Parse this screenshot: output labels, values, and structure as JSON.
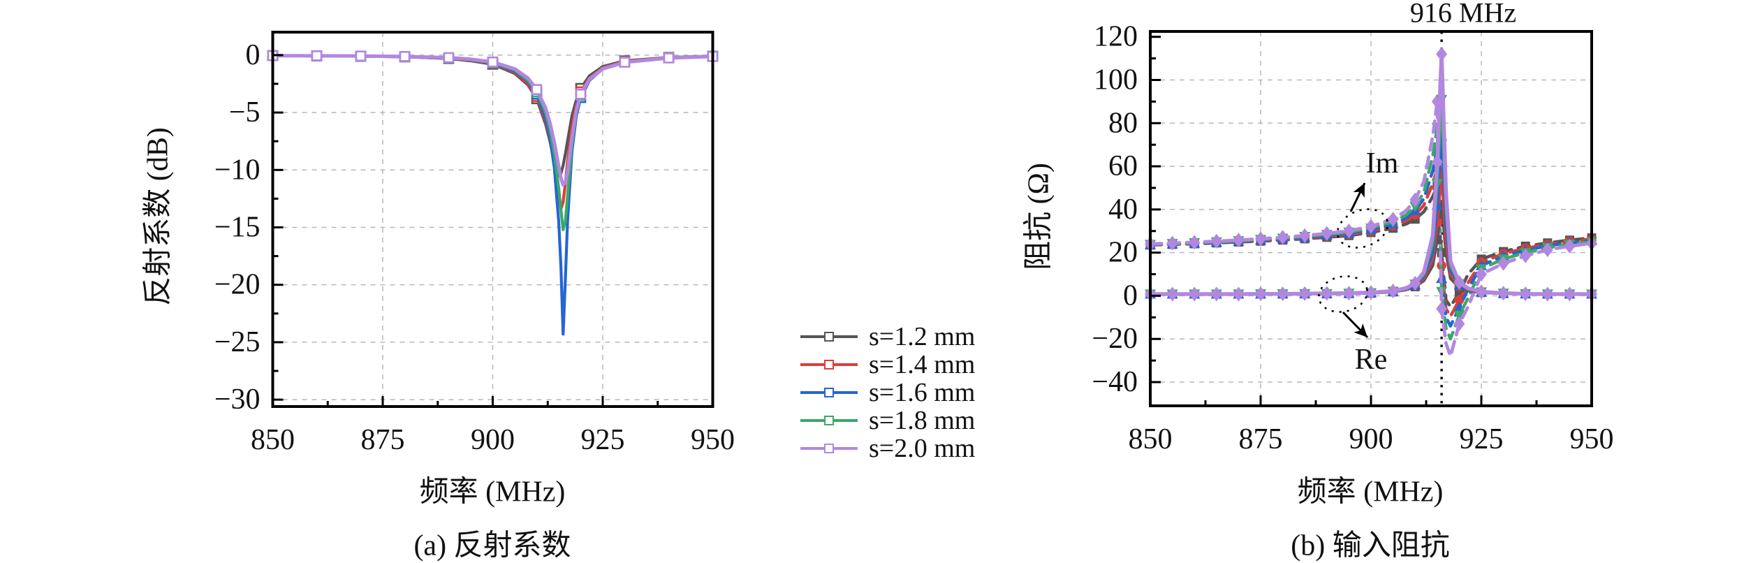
{
  "figure": {
    "background": "#ffffff",
    "legend": {
      "items": [
        {
          "label": "s=1.2 mm",
          "color": "#555555"
        },
        {
          "label": "s=1.4 mm",
          "color": "#e03c35"
        },
        {
          "label": "s=1.6 mm",
          "color": "#2565d4"
        },
        {
          "label": "s=1.8 mm",
          "color": "#3aa968"
        },
        {
          "label": "s=2.0 mm",
          "color": "#b387e0"
        }
      ]
    },
    "grid_color": "#b8b8b8",
    "axis_color": "#000000"
  },
  "chart_data": [
    {
      "id": "reflection",
      "type": "line",
      "title": "",
      "caption": "(a) 反射系数",
      "xlabel": "频率 (MHz)",
      "ylabel": "反射系数 (dB)",
      "xlim": [
        850,
        950
      ],
      "ylim": [
        -30.6,
        2.0
      ],
      "xticks": [
        850,
        875,
        900,
        925,
        950
      ],
      "yticks": [
        0,
        -5,
        -10,
        -15,
        -20,
        -25,
        -30
      ],
      "grid": true,
      "legend_position": "outside-right",
      "marker_every_mhz": 10,
      "marker_extra": [],
      "x": [
        850,
        860,
        870,
        880,
        890,
        895,
        900,
        905,
        908,
        910,
        912,
        913,
        914,
        915,
        915.5,
        916,
        916.5,
        917,
        918,
        919,
        920,
        922,
        925,
        930,
        940,
        950
      ],
      "series": [
        {
          "name": "s=1.2 mm",
          "color": "#555555",
          "marker": "square-open",
          "line": "solid",
          "width": 4.2,
          "values": [
            -0.05,
            -0.07,
            -0.1,
            -0.15,
            -0.3,
            -0.5,
            -0.8,
            -1.6,
            -2.6,
            -3.8,
            -6.0,
            -7.5,
            -9.3,
            -10.5,
            -10.3,
            -9.6,
            -8.6,
            -7.5,
            -5.3,
            -3.9,
            -2.9,
            -1.8,
            -1.0,
            -0.5,
            -0.2,
            -0.1
          ]
        },
        {
          "name": "s=1.4 mm",
          "color": "#e03c35",
          "marker": "square-open",
          "line": "solid",
          "width": 4.2,
          "values": [
            -0.05,
            -0.07,
            -0.1,
            -0.15,
            -0.28,
            -0.45,
            -0.75,
            -1.5,
            -2.5,
            -3.6,
            -5.8,
            -7.3,
            -9.5,
            -12.3,
            -13.4,
            -12.8,
            -11.2,
            -9.3,
            -6.3,
            -4.4,
            -3.2,
            -2.0,
            -1.1,
            -0.55,
            -0.2,
            -0.1
          ]
        },
        {
          "name": "s=1.6 mm",
          "color": "#2565d4",
          "marker": "square-open",
          "line": "solid",
          "width": 4.2,
          "values": [
            -0.05,
            -0.07,
            -0.1,
            -0.14,
            -0.26,
            -0.42,
            -0.7,
            -1.4,
            -2.3,
            -3.4,
            -5.5,
            -7.2,
            -9.8,
            -14.5,
            -18.5,
            -24.3,
            -19.5,
            -14.5,
            -8.4,
            -5.3,
            -3.7,
            -2.2,
            -1.2,
            -0.6,
            -0.22,
            -0.1
          ]
        },
        {
          "name": "s=1.8 mm",
          "color": "#3aa968",
          "marker": "square-open",
          "line": "solid",
          "width": 4.2,
          "values": [
            -0.05,
            -0.06,
            -0.09,
            -0.13,
            -0.24,
            -0.4,
            -0.65,
            -1.3,
            -2.2,
            -3.2,
            -5.0,
            -6.5,
            -8.6,
            -11.6,
            -13.5,
            -15.2,
            -14.5,
            -12.3,
            -7.8,
            -5.0,
            -3.5,
            -2.1,
            -1.15,
            -0.6,
            -0.22,
            -0.1
          ]
        },
        {
          "name": "s=2.0 mm",
          "color": "#b387e0",
          "marker": "square-open",
          "line": "solid",
          "width": 5.0,
          "values": [
            -0.05,
            -0.06,
            -0.08,
            -0.12,
            -0.22,
            -0.36,
            -0.6,
            -1.2,
            -2.0,
            -3.0,
            -4.6,
            -5.9,
            -7.6,
            -9.7,
            -10.7,
            -11.3,
            -11.1,
            -10.2,
            -7.2,
            -4.8,
            -3.4,
            -2.1,
            -1.2,
            -0.62,
            -0.25,
            -0.12
          ]
        }
      ]
    },
    {
      "id": "impedance",
      "type": "line",
      "title": "916 MHz",
      "caption": "(b) 输入阻抗",
      "xlabel": "频率 (MHz)",
      "ylabel": "阻抗 (Ω)",
      "xlim": [
        850,
        950
      ],
      "ylim": [
        -51,
        122.5
      ],
      "xticks": [
        850,
        875,
        900,
        925,
        950
      ],
      "yticks": [
        120,
        100,
        80,
        60,
        40,
        20,
        0,
        -20,
        -40
      ],
      "grid": true,
      "resonance_mhz": 916,
      "marker_every_mhz": 5,
      "marker_extra": [
        916
      ],
      "annotations": [
        {
          "text": "Im"
        },
        {
          "text": "Re"
        }
      ],
      "x": [
        850,
        855,
        860,
        865,
        870,
        875,
        880,
        885,
        890,
        895,
        900,
        905,
        908,
        910,
        912,
        914,
        915,
        916,
        917,
        918,
        920,
        922,
        925,
        930,
        935,
        940,
        945,
        950
      ],
      "series": [
        {
          "name": "Im s=1.2 mm",
          "group": "Im",
          "color": "#555555",
          "marker": "square",
          "line": "dashed",
          "width": 4.5,
          "values": [
            23.5,
            23.8,
            24.1,
            24.5,
            24.9,
            25.3,
            25.8,
            26.4,
            27.1,
            27.9,
            29.3,
            31.3,
            33.3,
            35.5,
            39,
            46,
            51,
            20,
            -2,
            -5,
            1.5,
            10,
            17,
            20.5,
            23,
            24.5,
            25.8,
            26.8
          ]
        },
        {
          "name": "Im s=1.4 mm",
          "group": "Im",
          "color": "#e03c35",
          "marker": "circle",
          "line": "dashed",
          "width": 4.5,
          "values": [
            23.6,
            23.9,
            24.3,
            24.7,
            25.1,
            25.6,
            26.1,
            26.8,
            27.6,
            28.5,
            30.0,
            32.3,
            34.8,
            37.5,
            42,
            52,
            59,
            14,
            -6,
            -9.5,
            -2,
            6,
            15.5,
            19.5,
            22,
            23.8,
            25.2,
            26.2
          ]
        },
        {
          "name": "Im s=1.6 mm",
          "group": "Im",
          "color": "#2565d4",
          "marker": "tri-up",
          "line": "dashed",
          "width": 4.5,
          "values": [
            23.7,
            24.0,
            24.4,
            24.8,
            25.3,
            25.8,
            26.4,
            27.1,
            28.0,
            29.0,
            30.7,
            33.2,
            36.0,
            39.5,
            45,
            58,
            68,
            8,
            -10,
            -14,
            -5.5,
            3,
            14,
            18.5,
            21,
            23.2,
            24.5,
            25.6
          ]
        },
        {
          "name": "Im s=1.8 mm",
          "group": "Im",
          "color": "#3aa968",
          "marker": "tri-down",
          "line": "dashed",
          "width": 4.5,
          "values": [
            23.8,
            24.2,
            24.6,
            25.0,
            25.5,
            26.1,
            26.7,
            27.5,
            28.4,
            29.5,
            31.4,
            34.2,
            37.5,
            41.5,
            48,
            65,
            78,
            2,
            -15,
            -20,
            -9,
            -1,
            12.5,
            17,
            20,
            22.3,
            23.8,
            25.0
          ]
        },
        {
          "name": "Im s=2.0 mm",
          "group": "Im",
          "color": "#b387e0",
          "marker": "diamond",
          "line": "dashed",
          "width": 4.8,
          "values": [
            24.0,
            24.4,
            24.8,
            25.3,
            25.8,
            26.4,
            27.1,
            27.9,
            28.9,
            30.1,
            32.2,
            35.5,
            39.5,
            44.5,
            53,
            74,
            90,
            -6,
            -22,
            -28,
            -13,
            -5,
            10,
            15,
            18.5,
            21.3,
            23,
            24.3
          ]
        },
        {
          "name": "Re s=1.2 mm",
          "group": "Re",
          "color": "#555555",
          "marker": "square",
          "line": "solid",
          "width": 4.2,
          "values": [
            0.8,
            0.8,
            0.8,
            0.8,
            0.8,
            0.8,
            0.8,
            0.9,
            0.9,
            1.0,
            1.2,
            1.8,
            2.8,
            4.2,
            7,
            14,
            26,
            42,
            20,
            8,
            3.8,
            2.4,
            1.5,
            1.0,
            0.9,
            0.8,
            0.8,
            0.8
          ]
        },
        {
          "name": "Re s=1.4 mm",
          "group": "Re",
          "color": "#e03c35",
          "marker": "circle",
          "line": "solid",
          "width": 4.2,
          "values": [
            0.8,
            0.8,
            0.8,
            0.8,
            0.8,
            0.8,
            0.9,
            0.9,
            1.0,
            1.1,
            1.3,
            1.9,
            3.0,
            4.6,
            8,
            17,
            34,
            56,
            26,
            10,
            4.4,
            2.7,
            1.6,
            1.1,
            0.9,
            0.8,
            0.8,
            0.8
          ]
        },
        {
          "name": "Re s=1.6 mm",
          "group": "Re",
          "color": "#2565d4",
          "marker": "tri-up",
          "line": "solid",
          "width": 4.2,
          "values": [
            0.8,
            0.8,
            0.8,
            0.8,
            0.8,
            0.8,
            0.9,
            0.9,
            1.0,
            1.1,
            1.3,
            2.0,
            3.2,
            5.0,
            9,
            20,
            42,
            74,
            33,
            12,
            5.0,
            3.0,
            1.7,
            1.1,
            0.9,
            0.8,
            0.8,
            0.8
          ]
        },
        {
          "name": "Re s=1.8 mm",
          "group": "Re",
          "color": "#3aa968",
          "marker": "tri-down",
          "line": "solid",
          "width": 4.2,
          "values": [
            0.8,
            0.8,
            0.8,
            0.8,
            0.8,
            0.9,
            0.9,
            1.0,
            1.0,
            1.2,
            1.4,
            2.1,
            3.4,
            5.4,
            10,
            24,
            52,
            91,
            40,
            14,
            5.6,
            3.2,
            1.8,
            1.2,
            0.9,
            0.8,
            0.8,
            0.8
          ]
        },
        {
          "name": "Re s=2.0 mm",
          "group": "Re",
          "color": "#b387e0",
          "marker": "diamond",
          "line": "solid",
          "width": 5.5,
          "values": [
            0.8,
            0.8,
            0.8,
            0.8,
            0.8,
            0.9,
            0.9,
            1.0,
            1.1,
            1.2,
            1.5,
            2.2,
            3.6,
            5.8,
            11,
            28,
            62,
            112,
            48,
            16,
            6.2,
            3.5,
            1.9,
            1.2,
            0.9,
            0.8,
            0.8,
            0.8
          ]
        }
      ]
    }
  ]
}
